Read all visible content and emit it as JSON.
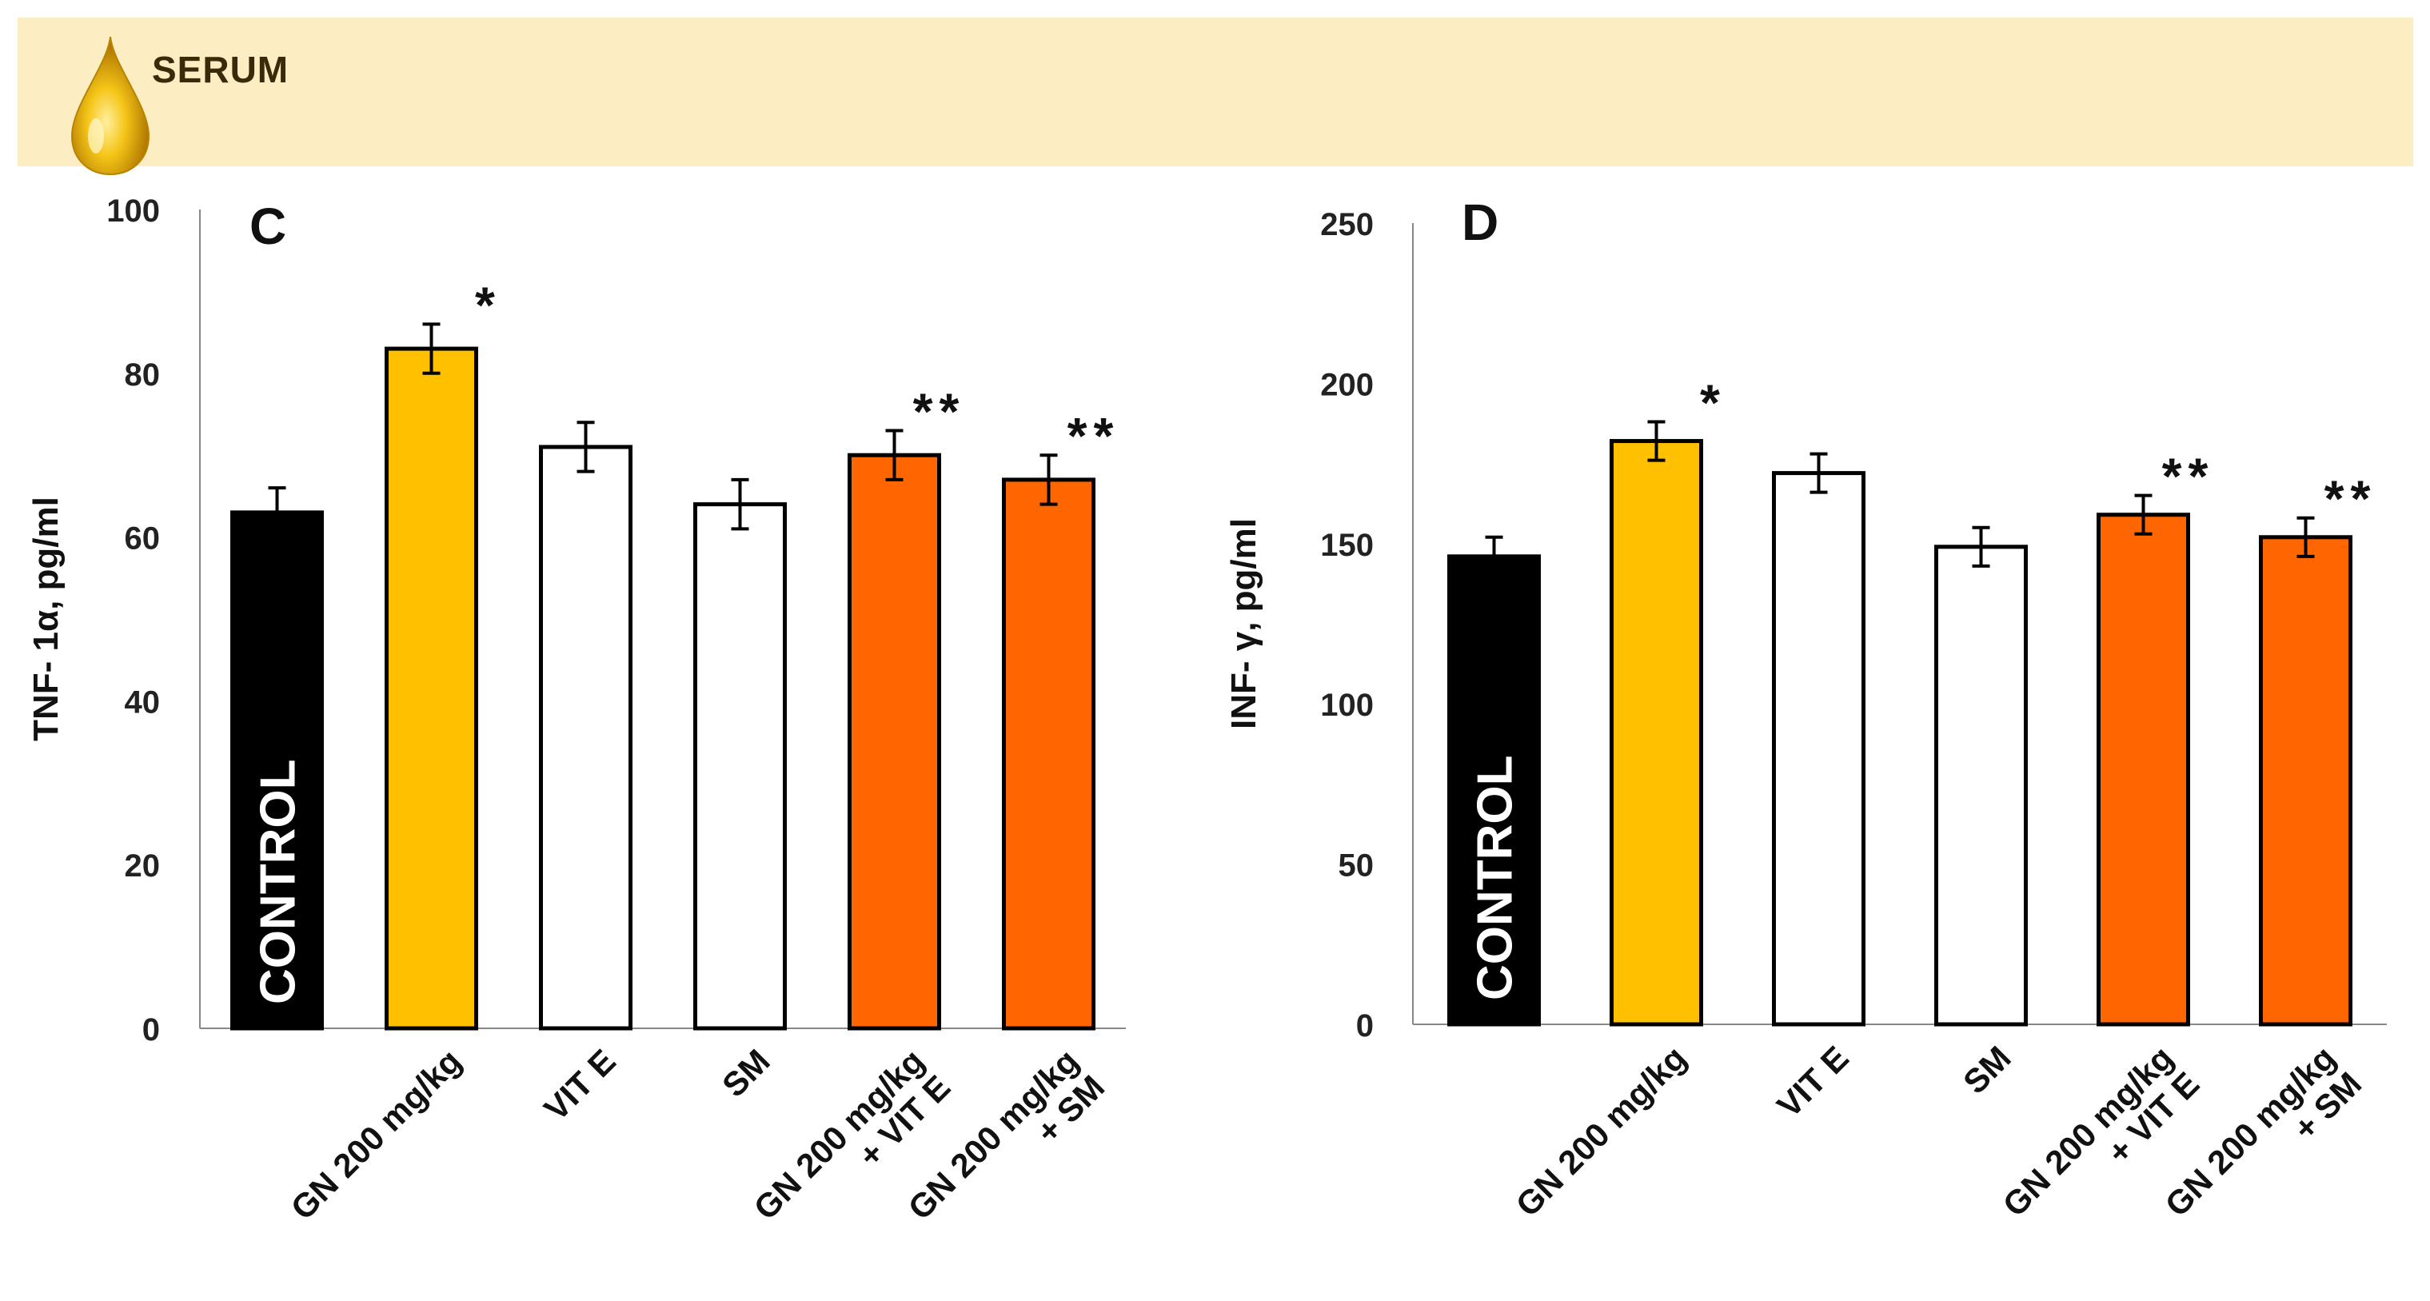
{
  "banner": {
    "title": "SERUM",
    "icon": "oil-drop-icon"
  },
  "colors": {
    "control": "#000000",
    "gn": "#ffc000",
    "treatment_alone": "#ffffff",
    "combination": "#ff6600",
    "banner_bg": "#fdedc3"
  },
  "chart_data": [
    {
      "type": "bar",
      "panel": "C",
      "title": "",
      "xlabel": "",
      "ylabel": "TNF- 1α, pg/ml",
      "ylim": [
        0,
        100
      ],
      "yticks": [
        0,
        20,
        40,
        60,
        80,
        100
      ],
      "ytick_labels": [
        "0",
        "20",
        "40",
        "60",
        "80",
        "100"
      ],
      "grid": false,
      "categories": [
        "CONTROL",
        "GN 200 mg/kg",
        "VIT E",
        "SM",
        "GN 200 mg/kg\n+ VIT E",
        "GN 200 mg/kg\n+ SM"
      ],
      "category_lines": [
        [
          "CONTROL"
        ],
        [
          "GN 200 mg/kg"
        ],
        [
          "VIT E"
        ],
        [
          "SM"
        ],
        [
          "GN 200 mg/kg",
          "+ VIT E"
        ],
        [
          "GN 200 mg/kg",
          "+ SM"
        ]
      ],
      "values": [
        63,
        83,
        71,
        64,
        70,
        67
      ],
      "errors": [
        3,
        3,
        3,
        3,
        3,
        3
      ],
      "bar_colors": [
        "#000000",
        "#ffc000",
        "#ffffff",
        "#ffffff",
        "#ff6600",
        "#ff6600"
      ],
      "significance": [
        "",
        "*",
        "",
        "",
        "**",
        "**"
      ]
    },
    {
      "type": "bar",
      "panel": "D",
      "title": "",
      "xlabel": "",
      "ylabel": "INF- γ, pg/ml",
      "ylim": [
        0,
        250
      ],
      "yticks": [
        0,
        50,
        100,
        150,
        200,
        250
      ],
      "ytick_labels": [
        "0",
        "50",
        "100",
        "150",
        "200",
        "250"
      ],
      "grid": false,
      "categories": [
        "CONTROL",
        "GN 200 mg/kg",
        "VIT E",
        "SM",
        "GN 200 mg/kg\n+ VIT E",
        "GN 200 mg/kg\n+ SM"
      ],
      "category_lines": [
        [
          "CONTROL"
        ],
        [
          "GN 200 mg/kg"
        ],
        [
          "VIT E"
        ],
        [
          "SM"
        ],
        [
          "GN 200 mg/kg",
          "+ VIT E"
        ],
        [
          "GN 200 mg/kg",
          "+ SM"
        ]
      ],
      "values": [
        146,
        182,
        172,
        149,
        159,
        152
      ],
      "errors": [
        6,
        6,
        6,
        6,
        6,
        6
      ],
      "bar_colors": [
        "#000000",
        "#ffc000",
        "#ffffff",
        "#ffffff",
        "#ff6600",
        "#ff6600"
      ],
      "significance": [
        "",
        "*",
        "",
        "",
        "**",
        "**"
      ]
    }
  ]
}
